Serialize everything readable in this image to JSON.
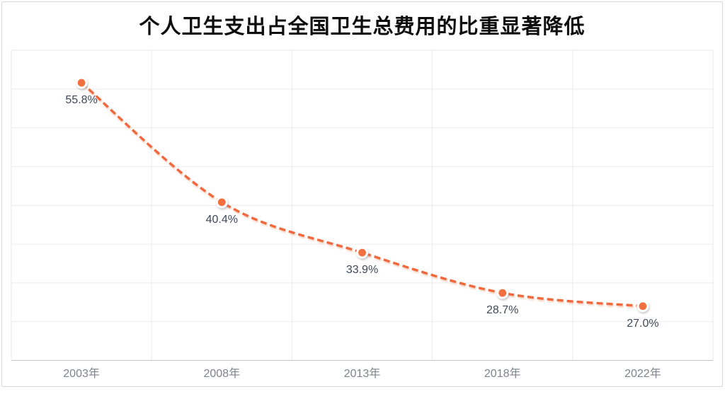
{
  "chart_data": {
    "type": "line",
    "title": "个人卫生支出占全国卫生总费用的比重显著降低",
    "categories": [
      "2003年",
      "2008年",
      "2013年",
      "2018年",
      "2022年"
    ],
    "values": [
      55.8,
      40.4,
      33.9,
      28.7,
      27.0
    ],
    "data_labels": [
      "55.8%",
      "40.4%",
      "33.9%",
      "28.7%",
      "27.0%"
    ],
    "xlabel": "",
    "ylabel": "",
    "ylim": [
      20,
      60
    ],
    "y_step": 5,
    "y_axis_labels_visible": false,
    "grid": true,
    "legend_position": "none",
    "line_style": "dashed",
    "marker": "circle-with-white-ring",
    "colors": {
      "line": "#f2683c",
      "marker_fill": "#f2703f",
      "marker_ring": "#ffffff",
      "grid": "#ebebeb",
      "axis": "#c6c6c6",
      "data_label": "#3f4959",
      "tick_label": "#7e838c",
      "title": "#0d0d0d",
      "card_border": "#d9d9d9",
      "background": "#ffffff"
    }
  }
}
